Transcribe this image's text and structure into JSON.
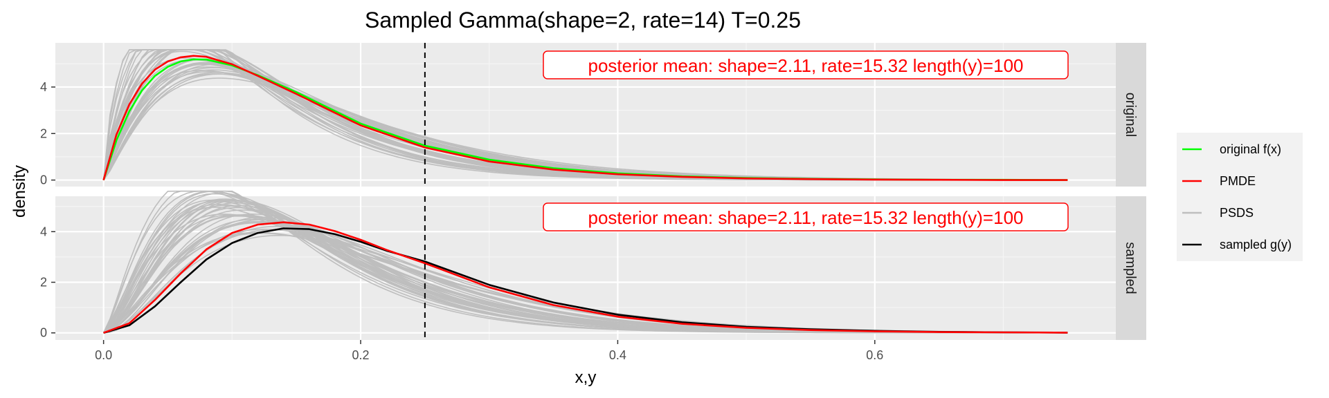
{
  "chart_data": {
    "type": "line",
    "title": "Sampled Gamma(shape=2, rate=14) T=0.25",
    "xlabel": "x,y",
    "ylabel": "density",
    "xlim": [
      -0.0375,
      0.7875
    ],
    "x_ticks": [
      "0.0",
      "0.2",
      "0.4",
      "0.6"
    ],
    "x_tick_values": [
      0.0,
      0.2,
      0.4,
      0.6
    ],
    "grid": true,
    "legend_position": "right",
    "vline": {
      "x": 0.25,
      "style": "dashed",
      "color": "#000000"
    },
    "panels": [
      {
        "strip": "original",
        "ylim": [
          -0.28,
          5.9
        ],
        "y_ticks": [
          "0",
          "2",
          "4"
        ],
        "y_tick_values": [
          0,
          2,
          4
        ],
        "annotation": "posterior mean: shape=2.11, rate=15.32 length(y)=100"
      },
      {
        "strip": "sampled",
        "ylim": [
          -0.28,
          5.4
        ],
        "y_ticks": [
          "0",
          "2",
          "4"
        ],
        "y_tick_values": [
          0,
          2,
          4
        ],
        "annotation": "posterior mean: shape=2.11, rate=15.32 length(y)=100"
      }
    ],
    "legend": [
      {
        "label": "original f(x)",
        "color": "#00ff00"
      },
      {
        "label": "PMDE",
        "color": "#ff0000"
      },
      {
        "label": "PSDS",
        "color": "#bebebe"
      },
      {
        "label": "sampled g(y)",
        "color": "#000000"
      }
    ],
    "series": [
      {
        "name": "original f(x)",
        "panel": "original",
        "color": "#00ff00",
        "x": [
          0,
          0.01,
          0.02,
          0.03,
          0.04,
          0.05,
          0.06,
          0.07,
          0.08,
          0.1,
          0.12,
          0.15,
          0.2,
          0.25,
          0.3,
          0.35,
          0.4,
          0.45,
          0.5,
          0.55,
          0.6,
          0.65,
          0.7,
          0.75
        ],
        "y": [
          0,
          1.7,
          2.96,
          3.86,
          4.48,
          4.87,
          5.1,
          5.19,
          5.18,
          4.93,
          4.51,
          3.78,
          2.43,
          1.48,
          0.88,
          0.51,
          0.29,
          0.16,
          0.09,
          0.05,
          0.03,
          0.01,
          0.01,
          0.0
        ]
      },
      {
        "name": "PMDE",
        "panel": "original",
        "color": "#ff0000",
        "x": [
          0,
          0.01,
          0.02,
          0.03,
          0.04,
          0.05,
          0.06,
          0.07,
          0.08,
          0.1,
          0.12,
          0.15,
          0.2,
          0.25,
          0.3,
          0.35,
          0.4,
          0.45,
          0.5,
          0.55,
          0.6,
          0.65,
          0.7,
          0.75
        ],
        "y": [
          0,
          1.95,
          3.25,
          4.15,
          4.75,
          5.1,
          5.28,
          5.34,
          5.3,
          4.98,
          4.48,
          3.7,
          2.35,
          1.4,
          0.8,
          0.45,
          0.25,
          0.14,
          0.07,
          0.04,
          0.02,
          0.01,
          0.0,
          0.0
        ]
      },
      {
        "name": "sampled g(y)",
        "panel": "sampled",
        "color": "#000000",
        "x": [
          0,
          0.02,
          0.04,
          0.06,
          0.08,
          0.1,
          0.12,
          0.14,
          0.16,
          0.18,
          0.2,
          0.22,
          0.25,
          0.3,
          0.35,
          0.4,
          0.45,
          0.5,
          0.55,
          0.6,
          0.65,
          0.7,
          0.75
        ],
        "y": [
          0,
          0.3,
          1.05,
          2.0,
          2.9,
          3.55,
          3.95,
          4.13,
          4.1,
          3.9,
          3.6,
          3.25,
          2.82,
          1.9,
          1.2,
          0.72,
          0.42,
          0.24,
          0.14,
          0.08,
          0.04,
          0.02,
          0.01
        ]
      },
      {
        "name": "PMDE",
        "panel": "sampled",
        "color": "#ff0000",
        "x": [
          0,
          0.02,
          0.04,
          0.06,
          0.08,
          0.1,
          0.12,
          0.14,
          0.16,
          0.18,
          0.2,
          0.22,
          0.25,
          0.3,
          0.35,
          0.4,
          0.45,
          0.5,
          0.55,
          0.6,
          0.65,
          0.7,
          0.75
        ],
        "y": [
          0,
          0.38,
          1.3,
          2.35,
          3.3,
          3.95,
          4.28,
          4.37,
          4.28,
          4.02,
          3.68,
          3.28,
          2.75,
          1.8,
          1.1,
          0.64,
          0.36,
          0.2,
          0.11,
          0.06,
          0.03,
          0.02,
          0.01
        ]
      }
    ],
    "psds_draws": {
      "name": "PSDS",
      "color": "#bebebe",
      "count_per_panel": 40,
      "shape_range": [
        1.7,
        2.6
      ],
      "rate_range": [
        12.5,
        18.5
      ]
    }
  }
}
